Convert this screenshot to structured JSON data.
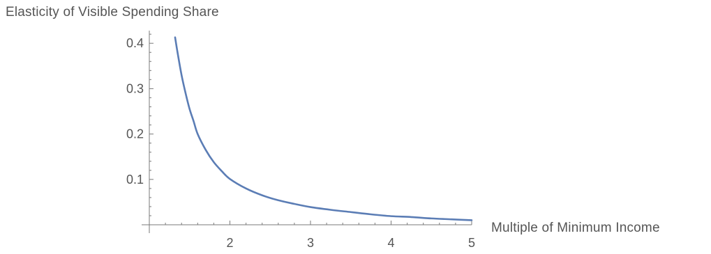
{
  "chart_data": {
    "type": "line",
    "title": "",
    "xlabel": "Multiple of Minimum Income",
    "ylabel": "Elasticity of Visible Spending Share",
    "xlim": [
      1,
      5
    ],
    "ylim": [
      0,
      0.4
    ],
    "x_ticks": [
      2,
      3,
      4,
      5
    ],
    "x_tick_labels": [
      "2",
      "3",
      "4",
      "5"
    ],
    "y_ticks": [
      0.1,
      0.2,
      0.3,
      0.4
    ],
    "y_tick_labels": [
      "0.1",
      "0.2",
      "0.3",
      "0.4"
    ],
    "grid": false,
    "line_color": "#5b7db5",
    "series": [
      {
        "points": [
          [
            1.32,
            0.413
          ],
          [
            1.35,
            0.38
          ],
          [
            1.4,
            0.33
          ],
          [
            1.45,
            0.29
          ],
          [
            1.5,
            0.255
          ],
          [
            1.55,
            0.228
          ],
          [
            1.6,
            0.2
          ],
          [
            1.7,
            0.165
          ],
          [
            1.8,
            0.138
          ],
          [
            1.9,
            0.118
          ],
          [
            2.0,
            0.101
          ],
          [
            2.2,
            0.08
          ],
          [
            2.4,
            0.065
          ],
          [
            2.6,
            0.054
          ],
          [
            2.8,
            0.046
          ],
          [
            3.0,
            0.039
          ],
          [
            3.25,
            0.033
          ],
          [
            3.5,
            0.028
          ],
          [
            3.75,
            0.023
          ],
          [
            4.0,
            0.019
          ],
          [
            4.25,
            0.017
          ],
          [
            4.5,
            0.014
          ],
          [
            4.75,
            0.012
          ],
          [
            5.0,
            0.01
          ]
        ]
      }
    ]
  }
}
